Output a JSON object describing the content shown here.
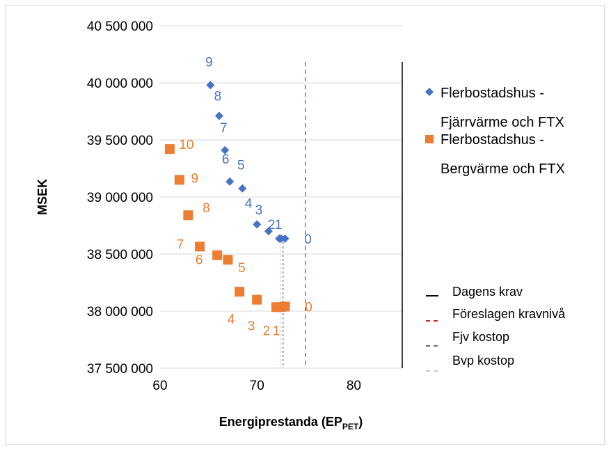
{
  "chart_data": {
    "type": "scatter",
    "xlabel_main": "Energiprestanda (EP",
    "xlabel_sub": "PET",
    "xlabel_end": ")",
    "ylabel": "MSEK",
    "xlim": [
      60,
      85
    ],
    "ylim": [
      37500000,
      40500000
    ],
    "x_ticks": [
      60,
      70,
      80
    ],
    "y_ticks": [
      37500000,
      38000000,
      38500000,
      39000000,
      39500000,
      40000000,
      40500000
    ],
    "y_tick_labels": [
      "37 500 000",
      "38 000 000",
      "38 500 000",
      "39 000 000",
      "39 500 000",
      "40 000 000",
      "40 500 000"
    ],
    "grid": "horizontal",
    "legend_position": "right",
    "series": [
      {
        "name_line1": "Flerbostadshus -",
        "name_line2": "Fjärrvärme och FTX",
        "marker": "diamond",
        "color": "#4472c4",
        "points": [
          {
            "x": 72.9,
            "y": 38635000,
            "label": "0"
          },
          {
            "x": 72.5,
            "y": 38635000,
            "label": "1"
          },
          {
            "x": 72.3,
            "y": 38635000,
            "label": "2"
          },
          {
            "x": 71.2,
            "y": 38700000,
            "label": "3"
          },
          {
            "x": 70.0,
            "y": 38760000,
            "label": "4"
          },
          {
            "x": 68.5,
            "y": 39075000,
            "label": "5"
          },
          {
            "x": 67.2,
            "y": 39135000,
            "label": "6"
          },
          {
            "x": 66.7,
            "y": 39410000,
            "label": "7"
          },
          {
            "x": 66.1,
            "y": 39710000,
            "label": "8"
          },
          {
            "x": 65.2,
            "y": 39980000,
            "label": "9"
          }
        ]
      },
      {
        "name_line1": "Flerbostadshus -",
        "name_line2": "Bergvärme och FTX",
        "marker": "square",
        "color": "#ed7d31",
        "points": [
          {
            "x": 72.9,
            "y": 38040000,
            "label": "0"
          },
          {
            "x": 72.5,
            "y": 38035000,
            "label": "1"
          },
          {
            "x": 72.0,
            "y": 38035000,
            "label": "2"
          },
          {
            "x": 70.0,
            "y": 38100000,
            "label": "3"
          },
          {
            "x": 68.2,
            "y": 38170000,
            "label": "4"
          },
          {
            "x": 67.0,
            "y": 38450000,
            "label": "5"
          },
          {
            "x": 65.9,
            "y": 38490000,
            "label": "6"
          },
          {
            "x": 64.1,
            "y": 38565000,
            "label": "7"
          },
          {
            "x": 62.9,
            "y": 38840000,
            "label": "8"
          },
          {
            "x": 62.0,
            "y": 39150000,
            "label": "9"
          },
          {
            "x": 61.0,
            "y": 39420000,
            "label": "10"
          }
        ]
      }
    ],
    "reference_lines": [
      {
        "name": "Dagens krav",
        "x": 85,
        "color": "#000000",
        "dash": "solid"
      },
      {
        "name": "Föreslagen kravnivå",
        "x": 75,
        "color": "#e02020",
        "dash": "dashed"
      },
      {
        "name": "Fjv kostop",
        "x": 72.7,
        "color": "#6b6b6b",
        "dash": "dashed"
      },
      {
        "name": "Bvp kostop",
        "x": 72.4,
        "color": "#c9c9c9",
        "dash": "dashed"
      }
    ]
  }
}
